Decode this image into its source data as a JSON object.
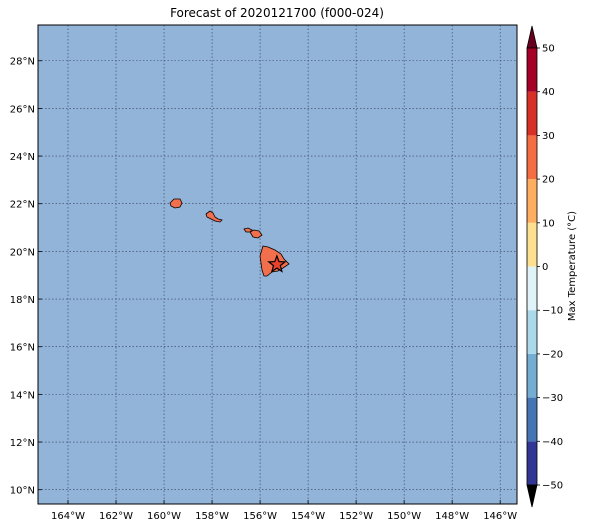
{
  "title": "Forecast of 2020121700 (f000-024)",
  "map": {
    "lon_range": [
      -165.25,
      -145.3
    ],
    "lat_range": [
      9.4,
      29.5
    ],
    "ocean_color": "#92b4d8",
    "land_color": "#f26f4e",
    "grid_style": "dotted",
    "lon_ticks": [
      "164°W",
      "162°W",
      "160°W",
      "158°W",
      "156°W",
      "154°W",
      "152°W",
      "150°W",
      "148°W",
      "146°W"
    ],
    "lat_ticks": [
      "28°N",
      "26°N",
      "24°N",
      "22°N",
      "20°N",
      "18°N",
      "16°N",
      "14°N",
      "12°N",
      "10°N"
    ],
    "marker": {
      "symbol": "star",
      "label": "",
      "lon": -155.3,
      "lat": 19.45
    }
  },
  "colorbar": {
    "label": "Max Temperature (°C)",
    "ticks": [
      "−50",
      "−40",
      "−30",
      "−20",
      "−10",
      "0",
      "10",
      "20",
      "30",
      "40",
      "50"
    ],
    "levels": [
      -50,
      -40,
      -30,
      -20,
      -10,
      0,
      10,
      20,
      30,
      40,
      50
    ],
    "colors": [
      "#313695",
      "#4575b4",
      "#74add1",
      "#abd9e9",
      "#e0f3f8",
      "#ffffbf",
      "#fee090",
      "#fdae61",
      "#f46d43",
      "#d73027",
      "#a50026"
    ],
    "under_color": "#000000",
    "over_color": "#67001f"
  }
}
